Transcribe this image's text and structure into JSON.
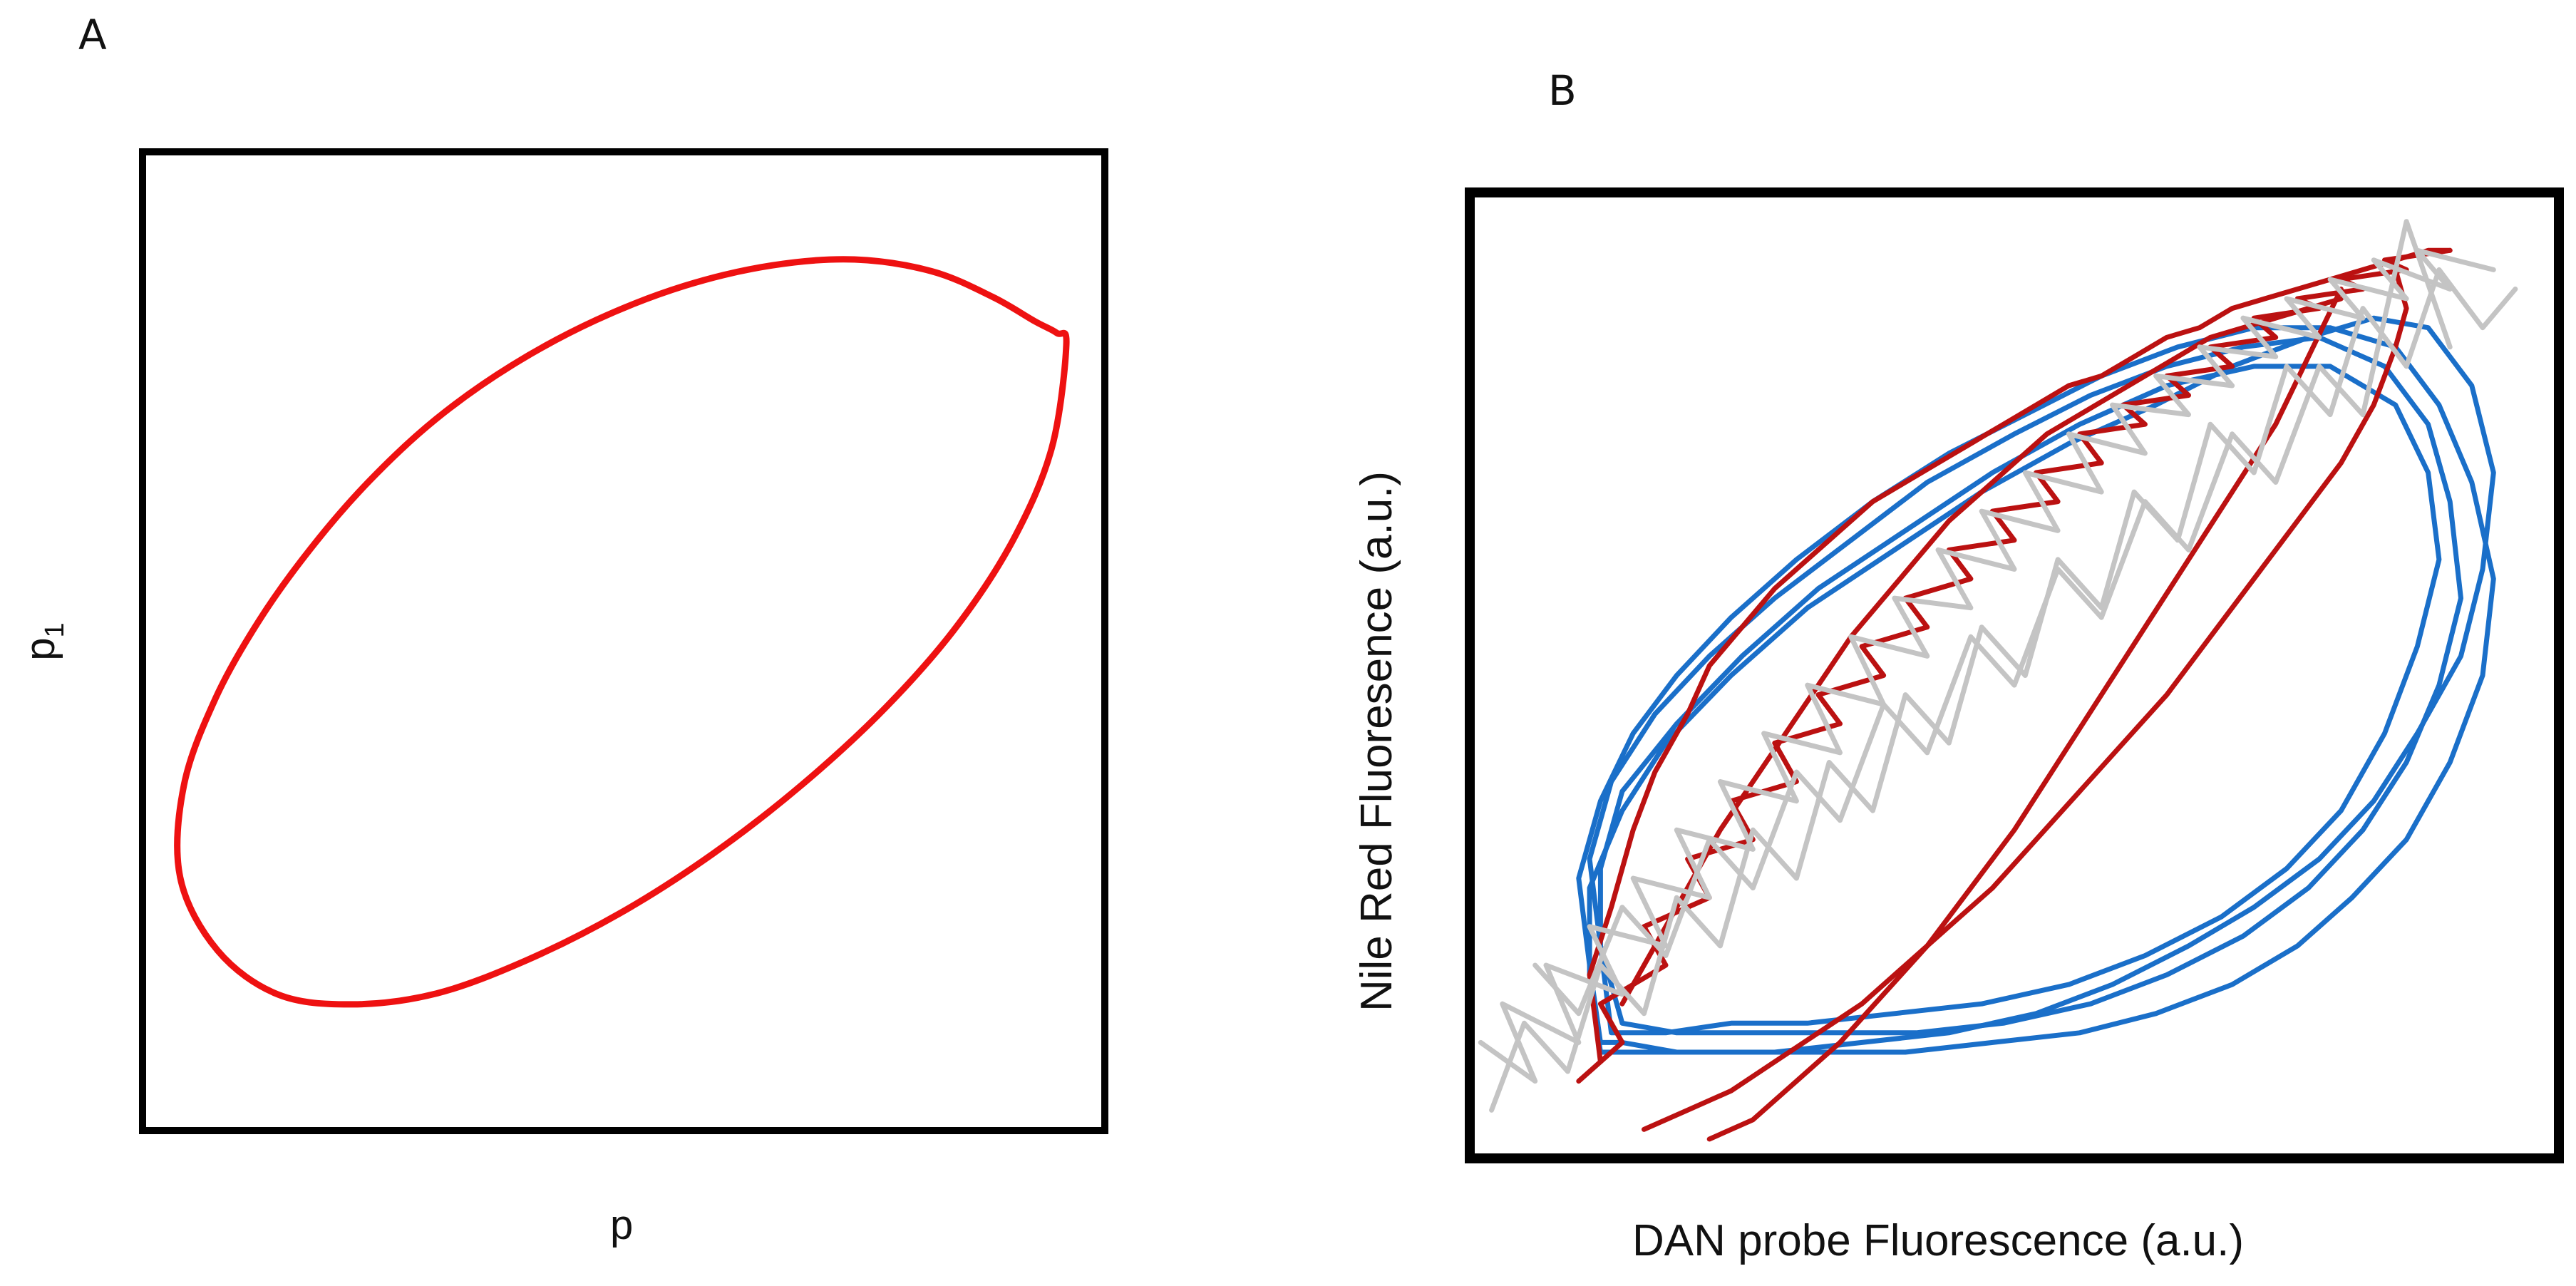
{
  "chart_data": [
    {
      "panel": "A",
      "type": "line",
      "title": "",
      "xlabel": "p",
      "ylabel": "p",
      "ylabel_subscript": "1",
      "xlim": [
        0,
        1
      ],
      "ylim": [
        0,
        1
      ],
      "grid": false,
      "legend": "none",
      "series": [
        {
          "color": "#ee1111",
          "closed": true,
          "x": [
            0.96,
            0.945,
            0.905,
            0.846,
            0.772,
            0.686,
            0.593,
            0.496,
            0.399,
            0.305,
            0.218,
            0.141,
            0.078,
            0.039,
            0.043,
            0.076,
            0.121,
            0.175,
            0.236,
            0.305,
            0.384,
            0.471,
            0.563,
            0.654,
            0.74,
            0.82,
            0.883,
            0.927,
            0.95
          ],
          "y": [
            0.803,
            0.698,
            0.604,
            0.515,
            0.432,
            0.354,
            0.283,
            0.222,
            0.174,
            0.14,
            0.129,
            0.139,
            0.184,
            0.259,
            0.353,
            0.442,
            0.521,
            0.595,
            0.664,
            0.727,
            0.782,
            0.828,
            0.863,
            0.884,
            0.89,
            0.878,
            0.852,
            0.827,
            0.815
          ]
        }
      ]
    },
    {
      "panel": "B",
      "type": "line",
      "title": "",
      "xlabel": "DAN probe Fluorescence (a.u.)",
      "ylabel": "Nile Red Fluoresence (a.u.)",
      "xlim": [
        0,
        1
      ],
      "ylim": [
        0,
        1
      ],
      "grid": false,
      "legend": "none",
      "series": [
        {
          "color": "#1a6fc9",
          "closed": true,
          "x": [
            0.12,
            0.11,
            0.1,
            0.12,
            0.15,
            0.19,
            0.24,
            0.3,
            0.37,
            0.44,
            0.51,
            0.58,
            0.65,
            0.72,
            0.79,
            0.85,
            0.89,
            0.92,
            0.94,
            0.93,
            0.9,
            0.86,
            0.81,
            0.76,
            0.7,
            0.63,
            0.56,
            0.48,
            0.4,
            0.32,
            0.25,
            0.19,
            0.14
          ],
          "y": [
            0.12,
            0.2,
            0.29,
            0.37,
            0.44,
            0.5,
            0.56,
            0.62,
            0.68,
            0.73,
            0.77,
            0.81,
            0.84,
            0.86,
            0.86,
            0.84,
            0.78,
            0.7,
            0.6,
            0.5,
            0.41,
            0.33,
            0.27,
            0.22,
            0.18,
            0.15,
            0.13,
            0.12,
            0.11,
            0.11,
            0.11,
            0.11,
            0.12
          ]
        },
        {
          "color": "#1a6fc9",
          "closed": true,
          "x": [
            0.14,
            0.12,
            0.11,
            0.13,
            0.17,
            0.22,
            0.28,
            0.35,
            0.42,
            0.5,
            0.57,
            0.64,
            0.71,
            0.78,
            0.84,
            0.88,
            0.9,
            0.91,
            0.89,
            0.86,
            0.82,
            0.77,
            0.71,
            0.64,
            0.57,
            0.49,
            0.41,
            0.33,
            0.26,
            0.19
          ],
          "y": [
            0.14,
            0.22,
            0.31,
            0.39,
            0.46,
            0.52,
            0.58,
            0.64,
            0.7,
            0.75,
            0.79,
            0.82,
            0.84,
            0.85,
            0.82,
            0.76,
            0.68,
            0.58,
            0.49,
            0.41,
            0.34,
            0.28,
            0.23,
            0.19,
            0.16,
            0.14,
            0.13,
            0.13,
            0.13,
            0.13
          ]
        },
        {
          "color": "#1a6fc9",
          "closed": true,
          "x": [
            0.13,
            0.12,
            0.12,
            0.14,
            0.19,
            0.25,
            0.32,
            0.4,
            0.48,
            0.56,
            0.64,
            0.72,
            0.79,
            0.85,
            0.88,
            0.89,
            0.87,
            0.84,
            0.8,
            0.75,
            0.69,
            0.62,
            0.55,
            0.47,
            0.39,
            0.31,
            0.24,
            0.18
          ],
          "y": [
            0.13,
            0.22,
            0.3,
            0.38,
            0.45,
            0.52,
            0.59,
            0.65,
            0.71,
            0.76,
            0.8,
            0.82,
            0.82,
            0.78,
            0.71,
            0.62,
            0.53,
            0.44,
            0.36,
            0.3,
            0.25,
            0.21,
            0.18,
            0.16,
            0.15,
            0.14,
            0.14,
            0.13
          ]
        },
        {
          "color": "#1a6fc9",
          "closed": true,
          "x": [
            0.12,
            0.11,
            0.11,
            0.14,
            0.18,
            0.24,
            0.31,
            0.39,
            0.47,
            0.55,
            0.63,
            0.7,
            0.77,
            0.83,
            0.88,
            0.92,
            0.94,
            0.93,
            0.91,
            0.87,
            0.83,
            0.78,
            0.72,
            0.66,
            0.59,
            0.52,
            0.44,
            0.36,
            0.28,
            0.21,
            0.16
          ],
          "y": [
            0.11,
            0.19,
            0.28,
            0.36,
            0.43,
            0.5,
            0.57,
            0.63,
            0.69,
            0.74,
            0.78,
            0.82,
            0.85,
            0.87,
            0.86,
            0.8,
            0.71,
            0.61,
            0.52,
            0.44,
            0.37,
            0.31,
            0.26,
            0.22,
            0.18,
            0.15,
            0.13,
            0.12,
            0.11,
            0.11,
            0.11
          ]
        },
        {
          "color": "#bb1111",
          "closed": false,
          "x": [
            0.1,
            0.14,
            0.12,
            0.18,
            0.16,
            0.22,
            0.2,
            0.26,
            0.24,
            0.3,
            0.28,
            0.34,
            0.32,
            0.38,
            0.36,
            0.42,
            0.4,
            0.46,
            0.44,
            0.5,
            0.48,
            0.54,
            0.52,
            0.58,
            0.56,
            0.62,
            0.6,
            0.66,
            0.64,
            0.7,
            0.68,
            0.74,
            0.72,
            0.78,
            0.76,
            0.82,
            0.8,
            0.86,
            0.84,
            0.9
          ],
          "y": [
            0.08,
            0.12,
            0.16,
            0.2,
            0.24,
            0.27,
            0.31,
            0.33,
            0.37,
            0.39,
            0.43,
            0.45,
            0.48,
            0.5,
            0.53,
            0.55,
            0.58,
            0.6,
            0.63,
            0.64,
            0.67,
            0.68,
            0.71,
            0.72,
            0.75,
            0.76,
            0.78,
            0.79,
            0.81,
            0.82,
            0.84,
            0.85,
            0.87,
            0.88,
            0.89,
            0.9,
            0.91,
            0.92,
            0.93,
            0.94
          ]
        },
        {
          "color": "#bb1111",
          "closed": false,
          "x": [
            0.12,
            0.11,
            0.13,
            0.15,
            0.17,
            0.2,
            0.22,
            0.25,
            0.28,
            0.31,
            0.34,
            0.37,
            0.4,
            0.43,
            0.46,
            0.49,
            0.52,
            0.55,
            0.58,
            0.61,
            0.64,
            0.67,
            0.7,
            0.73,
            0.76,
            0.79,
            0.82,
            0.85,
            0.88,
            0.9
          ],
          "y": [
            0.1,
            0.19,
            0.26,
            0.34,
            0.4,
            0.46,
            0.51,
            0.55,
            0.59,
            0.62,
            0.65,
            0.68,
            0.7,
            0.72,
            0.74,
            0.76,
            0.78,
            0.8,
            0.81,
            0.83,
            0.85,
            0.86,
            0.88,
            0.89,
            0.9,
            0.91,
            0.92,
            0.93,
            0.94,
            0.94
          ]
        },
        {
          "color": "#bb1111",
          "closed": false,
          "x": [
            0.16,
            0.2,
            0.24,
            0.28,
            0.32,
            0.36,
            0.4,
            0.44,
            0.48,
            0.52,
            0.56,
            0.6,
            0.64,
            0.68,
            0.72,
            0.76,
            0.8,
            0.83,
            0.85,
            0.86,
            0.85
          ],
          "y": [
            0.03,
            0.05,
            0.07,
            0.1,
            0.13,
            0.16,
            0.2,
            0.24,
            0.28,
            0.33,
            0.38,
            0.43,
            0.48,
            0.54,
            0.6,
            0.66,
            0.72,
            0.78,
            0.84,
            0.88,
            0.92
          ]
        },
        {
          "color": "#bb1111",
          "closed": false,
          "x": [
            0.22,
            0.26,
            0.3,
            0.34,
            0.38,
            0.42,
            0.46,
            0.5,
            0.54,
            0.58,
            0.62,
            0.66,
            0.7,
            0.74,
            0.77,
            0.8
          ],
          "y": [
            0.02,
            0.04,
            0.08,
            0.12,
            0.17,
            0.22,
            0.28,
            0.34,
            0.41,
            0.48,
            0.55,
            0.62,
            0.69,
            0.76,
            0.83,
            0.9
          ]
        },
        {
          "color": "#bb1111",
          "closed": false,
          "x": [
            0.14,
            0.17,
            0.2,
            0.23,
            0.26,
            0.29,
            0.32,
            0.35,
            0.38,
            0.41,
            0.44,
            0.47,
            0.5,
            0.53,
            0.56,
            0.59,
            0.62,
            0.65,
            0.68,
            0.71,
            0.74,
            0.77,
            0.8
          ],
          "y": [
            0.16,
            0.22,
            0.28,
            0.34,
            0.39,
            0.44,
            0.49,
            0.54,
            0.58,
            0.62,
            0.66,
            0.69,
            0.72,
            0.75,
            0.77,
            0.79,
            0.81,
            0.83,
            0.85,
            0.86,
            0.87,
            0.88,
            0.89
          ]
        },
        {
          "color": "#c4c4c4",
          "closed": false,
          "x": [
            0.01,
            0.06,
            0.03,
            0.1,
            0.07,
            0.14,
            0.11,
            0.18,
            0.15,
            0.22,
            0.19,
            0.26,
            0.23,
            0.3,
            0.27,
            0.34,
            0.31,
            0.38,
            0.35,
            0.42,
            0.39,
            0.46,
            0.43,
            0.5,
            0.47,
            0.54,
            0.51,
            0.58,
            0.55,
            0.62,
            0.59,
            0.66,
            0.63,
            0.7,
            0.67,
            0.74,
            0.71,
            0.78,
            0.75,
            0.82,
            0.79,
            0.86,
            0.83,
            0.9,
            0.87,
            0.94
          ],
          "y": [
            0.12,
            0.08,
            0.16,
            0.12,
            0.2,
            0.17,
            0.24,
            0.22,
            0.29,
            0.27,
            0.34,
            0.32,
            0.39,
            0.37,
            0.44,
            0.42,
            0.49,
            0.47,
            0.54,
            0.52,
            0.58,
            0.57,
            0.63,
            0.61,
            0.67,
            0.65,
            0.71,
            0.69,
            0.75,
            0.73,
            0.78,
            0.77,
            0.81,
            0.8,
            0.84,
            0.83,
            0.87,
            0.85,
            0.89,
            0.87,
            0.91,
            0.89,
            0.93,
            0.9,
            0.94,
            0.92
          ]
        },
        {
          "color": "#c4c4c4",
          "closed": false,
          "x": [
            0.02,
            0.05,
            0.09,
            0.12,
            0.16,
            0.19,
            0.23,
            0.26,
            0.3,
            0.33,
            0.37,
            0.4,
            0.44,
            0.47,
            0.51,
            0.54,
            0.58,
            0.61,
            0.65,
            0.68,
            0.72,
            0.75,
            0.79,
            0.82,
            0.86,
            0.89,
            0.93,
            0.96
          ],
          "y": [
            0.05,
            0.14,
            0.09,
            0.2,
            0.15,
            0.27,
            0.22,
            0.34,
            0.29,
            0.41,
            0.36,
            0.48,
            0.43,
            0.55,
            0.5,
            0.62,
            0.57,
            0.69,
            0.64,
            0.76,
            0.71,
            0.82,
            0.77,
            0.88,
            0.82,
            0.92,
            0.86,
            0.9
          ]
        },
        {
          "color": "#c4c4c4",
          "closed": false,
          "x": [
            0.06,
            0.1,
            0.14,
            0.18,
            0.22,
            0.26,
            0.3,
            0.34,
            0.38,
            0.42,
            0.46,
            0.5,
            0.54,
            0.58,
            0.62,
            0.66,
            0.7,
            0.74,
            0.78,
            0.82,
            0.86,
            0.9
          ],
          "y": [
            0.2,
            0.15,
            0.26,
            0.21,
            0.33,
            0.28,
            0.4,
            0.35,
            0.47,
            0.42,
            0.54,
            0.49,
            0.61,
            0.56,
            0.68,
            0.63,
            0.75,
            0.7,
            0.82,
            0.77,
            0.97,
            0.84
          ]
        }
      ]
    }
  ],
  "labels": {
    "panel_a": "A",
    "panel_b": "B"
  }
}
